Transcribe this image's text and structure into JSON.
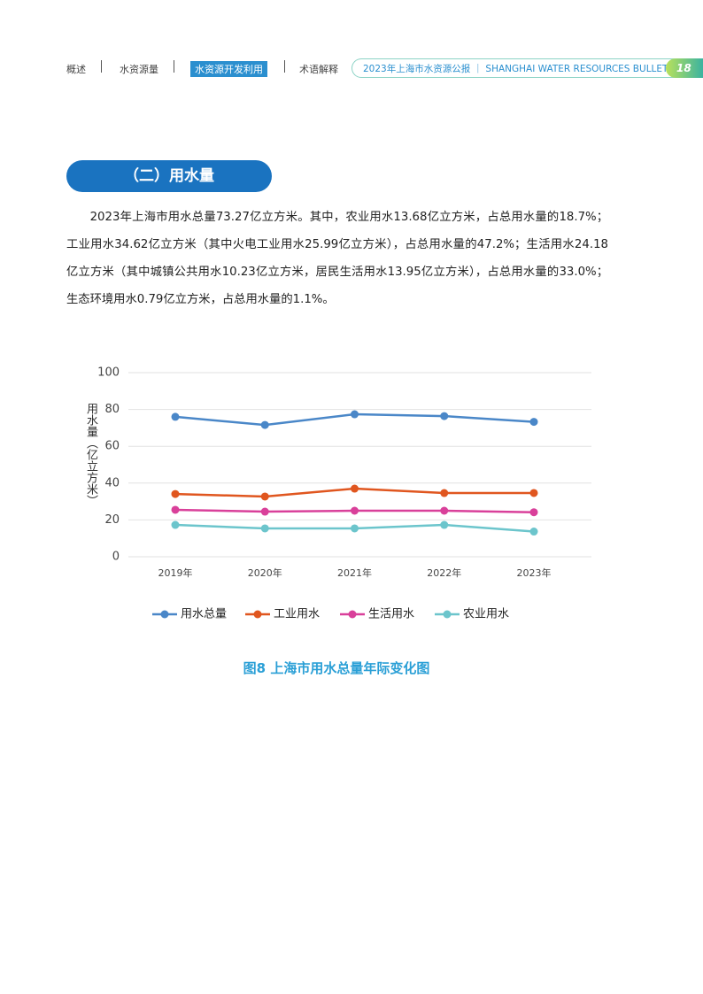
{
  "header": {
    "nav": [
      "概述",
      "水资源量",
      "水资源开发利用",
      "术语解释"
    ],
    "title": "2023年上海市水资源公报",
    "subtitle": "SHANGHAI WATER RESOURCES BULLETIN",
    "page": "18"
  },
  "section": {
    "title": "（二）用水量"
  },
  "paragraph": "2023年上海市用水总量73.27亿立方米。其中，农业用水13.68亿立方米，占总用水量的18.7%；工业用水34.62亿立方米（其中火电工业用水25.99亿立方米），占总用水量的47.2%；生活用水24.18亿立方米（其中城镇公共用水10.23亿立方米，居民生活用水13.95亿立方米），占总用水量的33.0%；生态环境用水0.79亿立方米，占总用水量的1.1%。",
  "chart_data": {
    "type": "line",
    "y_label": "用水量（亿立方米）",
    "categories": [
      "2019年",
      "2020年",
      "2021年",
      "2022年",
      "2023年"
    ],
    "series": [
      {
        "name": "用水总量",
        "color": "#4a87c8",
        "values": [
          76.0,
          71.6,
          77.4,
          76.4,
          73.27
        ]
      },
      {
        "name": "工业用水",
        "color": "#e0561f",
        "values": [
          34.1,
          32.7,
          37.0,
          34.6,
          34.62
        ]
      },
      {
        "name": "生活用水",
        "color": "#d9409a",
        "values": [
          25.5,
          24.5,
          25.0,
          25.0,
          24.18
        ]
      },
      {
        "name": "农业用水",
        "color": "#6cc5cc",
        "values": [
          17.3,
          15.4,
          15.4,
          17.3,
          13.68
        ]
      }
    ],
    "ylim": [
      0,
      100
    ],
    "yticks": [
      0,
      20,
      40,
      60,
      80,
      100
    ],
    "grid": true,
    "legend": "bottom"
  },
  "caption": "图8 上海市用水总量年际变化图"
}
